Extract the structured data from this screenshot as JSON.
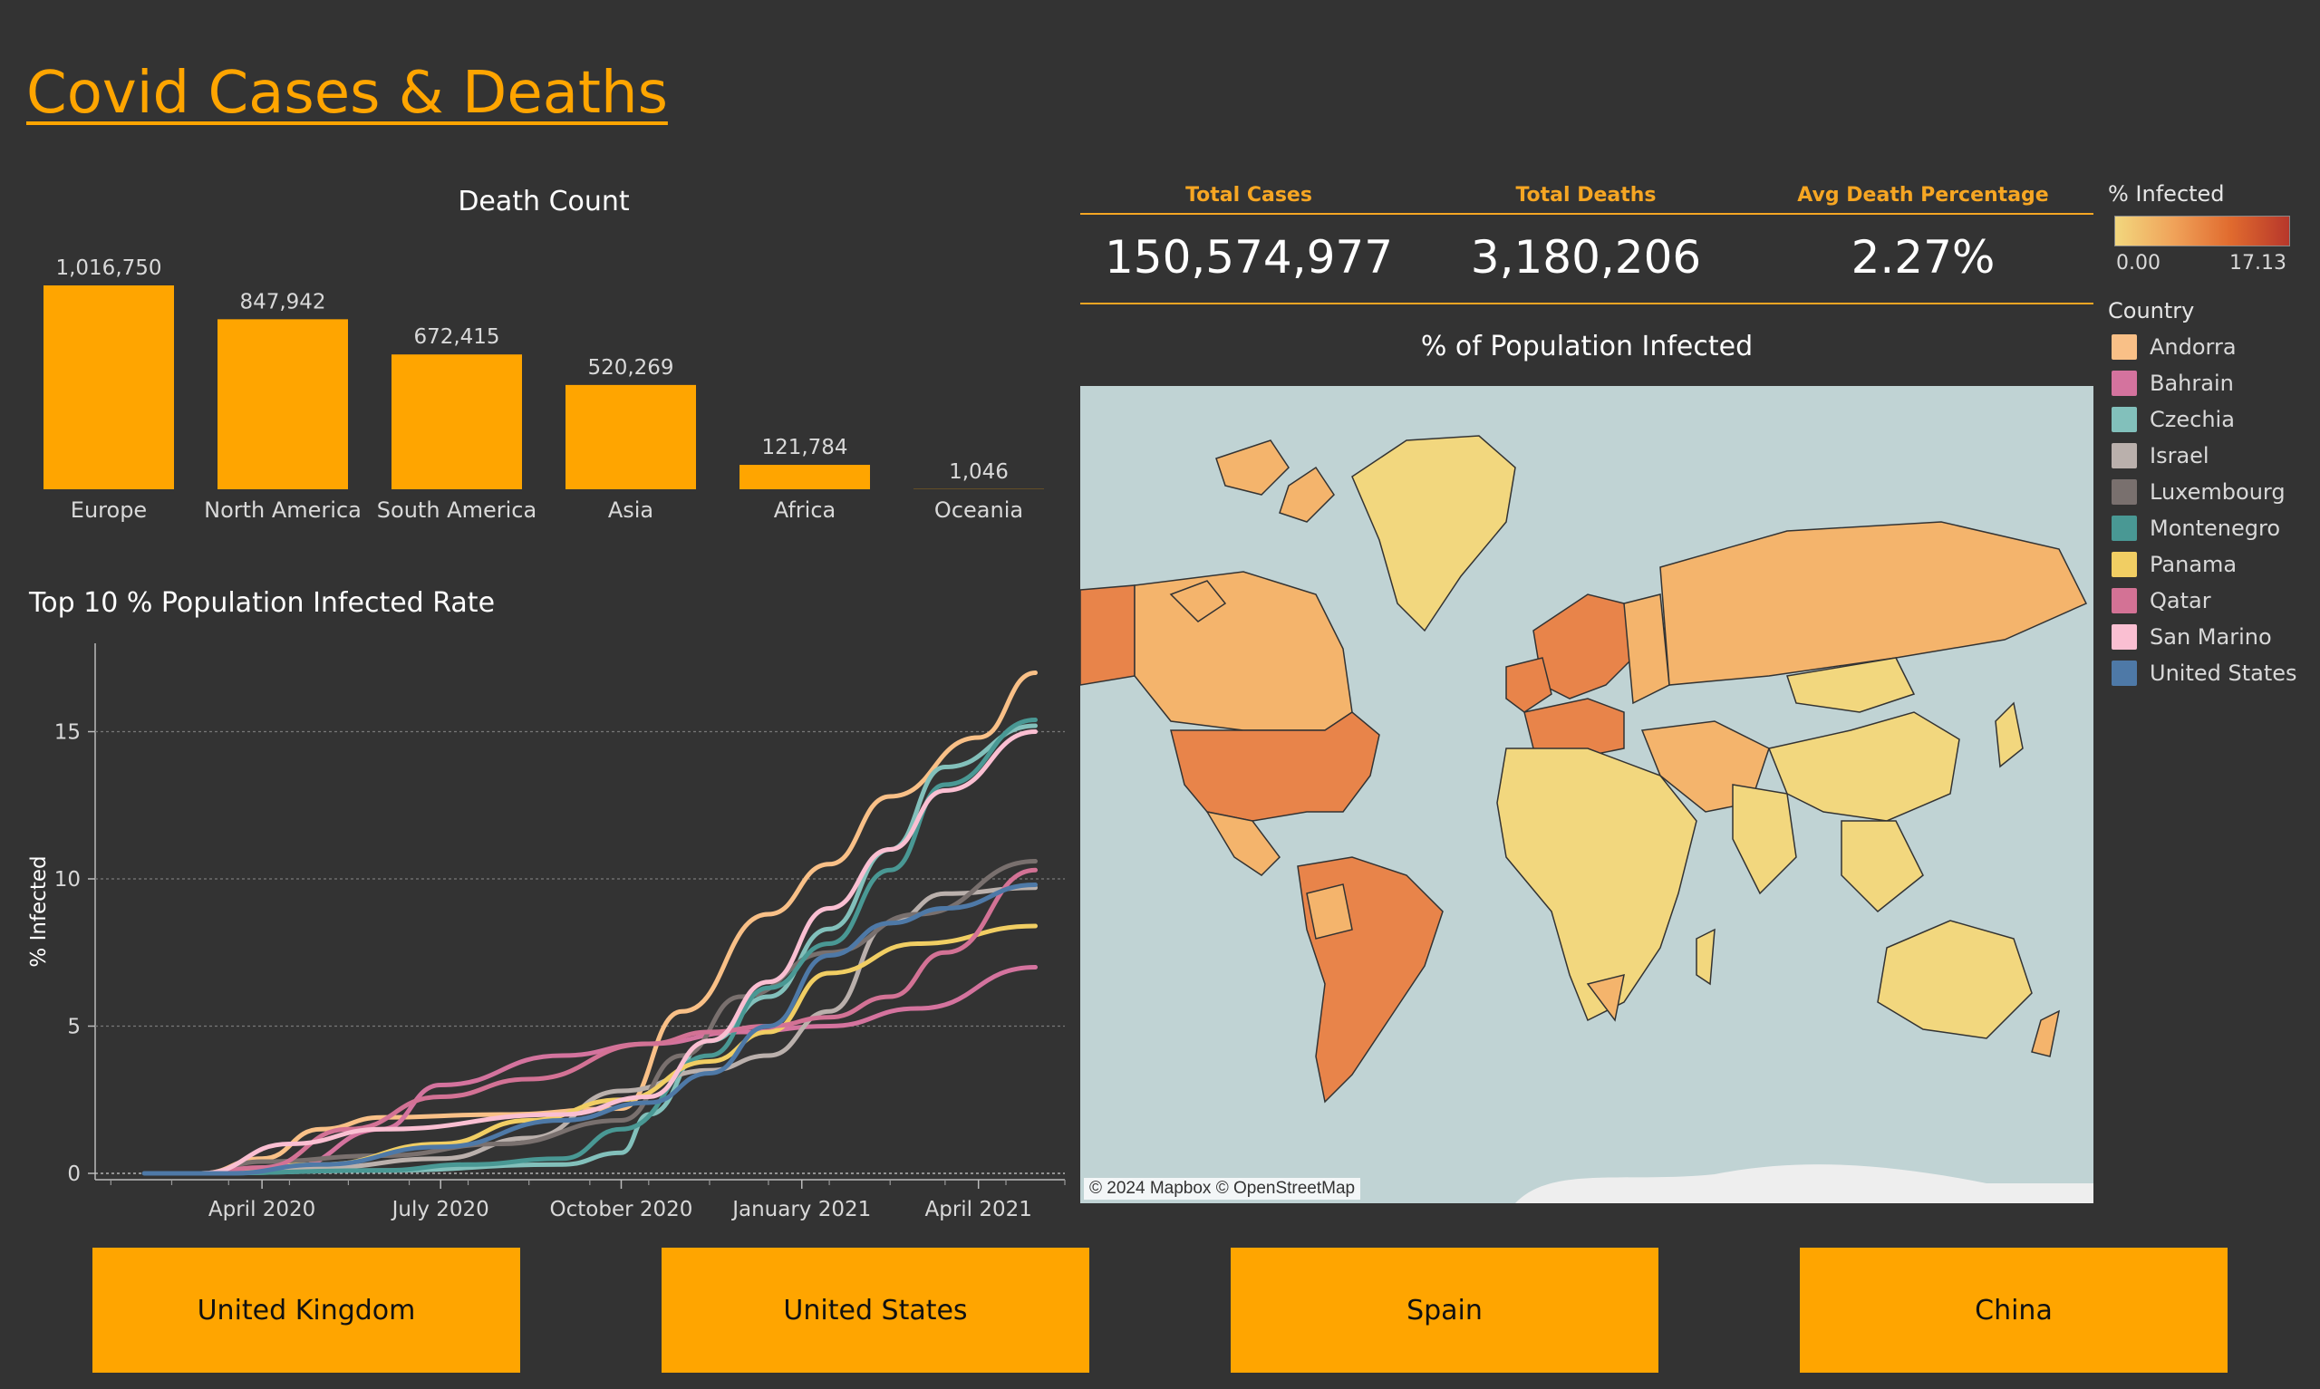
{
  "header": {
    "title": "Covid Cases & Deaths"
  },
  "colors": {
    "accent": "#ffa500",
    "background": "#333333",
    "ocean": "#c0d3d4",
    "land_low": "#f2d77e",
    "land_high": "#c0392b"
  },
  "death_chart": {
    "title": "Death Count",
    "chart_data": {
      "type": "bar",
      "title": "Death Count",
      "categories": [
        "Europe",
        "North America",
        "South America",
        "Asia",
        "Africa",
        "Oceania"
      ],
      "values": [
        1016750,
        847942,
        672415,
        520269,
        121784,
        1046
      ],
      "value_labels": [
        "1,016,750",
        "847,942",
        "672,415",
        "520,269",
        "121,784",
        "1,046"
      ],
      "color": "#ffa500"
    }
  },
  "kpis": {
    "total_cases_label": "Total Cases",
    "total_cases_value": "150,574,977",
    "total_deaths_label": "Total Deaths",
    "total_deaths_value": "3,180,206",
    "avg_death_pct_label": "Avg Death Percentage",
    "avg_death_pct_value": "2.27%"
  },
  "line_chart": {
    "title": "Top 10 % Population Infected Rate",
    "chart_data": {
      "type": "line",
      "title": "Top 10 % Population Infected Rate",
      "ylabel": "% Infected",
      "xlabel": "",
      "x_ticks": [
        "April 2020",
        "July 2020",
        "October 2020",
        "January 2021",
        "April 2021"
      ],
      "y_ticks": [
        "0",
        "5",
        "10",
        "15"
      ],
      "ylim": [
        0,
        18
      ],
      "xlim": [
        "2020-01-07",
        "2021-05-15"
      ],
      "grid": "horizontal dashed",
      "series": [
        {
          "name": "Andorra",
          "color": "#f9c087",
          "x": [
            "2020-03-01",
            "2020-04-01",
            "2020-05-01",
            "2020-06-01",
            "2020-08-01",
            "2020-10-01",
            "2020-11-01",
            "2020-12-15",
            "2021-01-15",
            "2021-02-15",
            "2021-04-01",
            "2021-04-30"
          ],
          "y": [
            0,
            0.5,
            1.5,
            1.9,
            2.0,
            2.2,
            5.5,
            8.8,
            10.5,
            12.8,
            14.8,
            17.0
          ]
        },
        {
          "name": "Bahrain",
          "color": "#d4739e",
          "x": [
            "2020-03-01",
            "2020-04-15",
            "2020-06-01",
            "2020-07-01",
            "2020-09-01",
            "2020-10-15",
            "2020-12-01",
            "2021-01-15",
            "2021-03-01",
            "2021-04-30"
          ],
          "y": [
            0,
            0.2,
            1.5,
            3.0,
            4.0,
            4.4,
            4.8,
            5.0,
            5.6,
            7.0
          ]
        },
        {
          "name": "Czechia",
          "color": "#82c0bb",
          "x": [
            "2020-03-01",
            "2020-06-01",
            "2020-09-01",
            "2020-10-01",
            "2020-10-15",
            "2020-11-15",
            "2020-12-15",
            "2021-01-15",
            "2021-02-15",
            "2021-03-15",
            "2021-04-30"
          ],
          "y": [
            0,
            0.1,
            0.3,
            0.7,
            2.0,
            4.5,
            6.0,
            8.3,
            11.0,
            13.8,
            15.2
          ]
        },
        {
          "name": "Israel",
          "color": "#bab0ac",
          "x": [
            "2020-03-01",
            "2020-05-01",
            "2020-07-01",
            "2020-08-15",
            "2020-10-01",
            "2020-11-15",
            "2020-12-15",
            "2021-01-15",
            "2021-02-15",
            "2021-03-15",
            "2021-04-30"
          ],
          "y": [
            0,
            0.2,
            0.5,
            1.2,
            2.8,
            3.5,
            4.0,
            5.5,
            8.5,
            9.5,
            9.7
          ]
        },
        {
          "name": "Luxembourg",
          "color": "#79706e",
          "x": [
            "2020-03-01",
            "2020-04-01",
            "2020-06-01",
            "2020-08-01",
            "2020-10-01",
            "2020-11-01",
            "2020-12-01",
            "2021-01-15",
            "2021-03-01",
            "2021-04-30"
          ],
          "y": [
            0,
            0.4,
            0.6,
            1.0,
            1.8,
            4.0,
            6.0,
            7.5,
            8.8,
            10.6
          ]
        },
        {
          "name": "Montenegro",
          "color": "#499894",
          "x": [
            "2020-03-01",
            "2020-06-01",
            "2020-07-15",
            "2020-09-01",
            "2020-10-01",
            "2020-11-15",
            "2020-12-15",
            "2021-01-15",
            "2021-02-15",
            "2021-03-15",
            "2021-04-30"
          ],
          "y": [
            0,
            0.1,
            0.3,
            0.5,
            1.5,
            4.0,
            6.3,
            7.8,
            10.3,
            13.2,
            15.4
          ]
        },
        {
          "name": "Panama",
          "color": "#f1ce63",
          "x": [
            "2020-03-01",
            "2020-05-01",
            "2020-07-01",
            "2020-08-15",
            "2020-10-01",
            "2020-11-15",
            "2020-12-15",
            "2021-01-15",
            "2021-03-01",
            "2021-04-30"
          ],
          "y": [
            0,
            0.3,
            1.0,
            1.8,
            2.5,
            3.8,
            4.8,
            6.8,
            7.8,
            8.4
          ]
        },
        {
          "name": "Qatar",
          "color": "#d37295",
          "x": [
            "2020-03-01",
            "2020-04-01",
            "2020-05-15",
            "2020-07-01",
            "2020-08-15",
            "2020-10-15",
            "2020-11-15",
            "2020-12-15",
            "2021-01-15",
            "2021-02-15",
            "2021-03-15",
            "2021-04-30"
          ],
          "y": [
            0,
            0.2,
            1.5,
            2.6,
            3.2,
            4.4,
            4.8,
            5.0,
            5.3,
            6.0,
            7.5,
            10.3
          ]
        },
        {
          "name": "San Marino",
          "color": "#fabfd2",
          "x": [
            "2020-03-01",
            "2020-04-15",
            "2020-06-01",
            "2020-09-01",
            "2020-10-15",
            "2020-11-15",
            "2020-12-15",
            "2021-01-15",
            "2021-02-15",
            "2021-03-15",
            "2021-04-30"
          ],
          "y": [
            0,
            1.0,
            1.5,
            2.0,
            2.6,
            4.5,
            6.5,
            9.0,
            11.0,
            13.0,
            15.0
          ]
        },
        {
          "name": "United States",
          "color": "#4e79a7",
          "x": [
            "2020-02-01",
            "2020-03-15",
            "2020-05-01",
            "2020-07-01",
            "2020-09-01",
            "2020-10-15",
            "2020-11-15",
            "2020-12-15",
            "2021-01-15",
            "2021-02-15",
            "2021-03-15",
            "2021-04-30"
          ],
          "y": [
            0,
            0.0,
            0.3,
            0.9,
            1.8,
            2.4,
            3.4,
            5.0,
            7.4,
            8.5,
            9.0,
            9.8
          ]
        }
      ]
    }
  },
  "map": {
    "title": "% of Population Infected",
    "attribution": "© 2024 Mapbox © OpenStreetMap",
    "legend_title": "% Infected",
    "legend_min": "0.00",
    "legend_max": "17.13"
  },
  "country_legend": {
    "title": "Country",
    "items": [
      {
        "label": "Andorra",
        "color": "#f9c087"
      },
      {
        "label": "Bahrain",
        "color": "#d4739e"
      },
      {
        "label": "Czechia",
        "color": "#82c0bb"
      },
      {
        "label": "Israel",
        "color": "#bab0ac"
      },
      {
        "label": "Luxembourg",
        "color": "#79706e"
      },
      {
        "label": "Montenegro",
        "color": "#499894"
      },
      {
        "label": "Panama",
        "color": "#f1ce63"
      },
      {
        "label": "Qatar",
        "color": "#d37295"
      },
      {
        "label": "San Marino",
        "color": "#fabfd2"
      },
      {
        "label": "United States",
        "color": "#4e79a7"
      }
    ]
  },
  "filter_buttons": [
    {
      "label": "United Kingdom"
    },
    {
      "label": "United States"
    },
    {
      "label": "Spain"
    },
    {
      "label": "China"
    }
  ]
}
